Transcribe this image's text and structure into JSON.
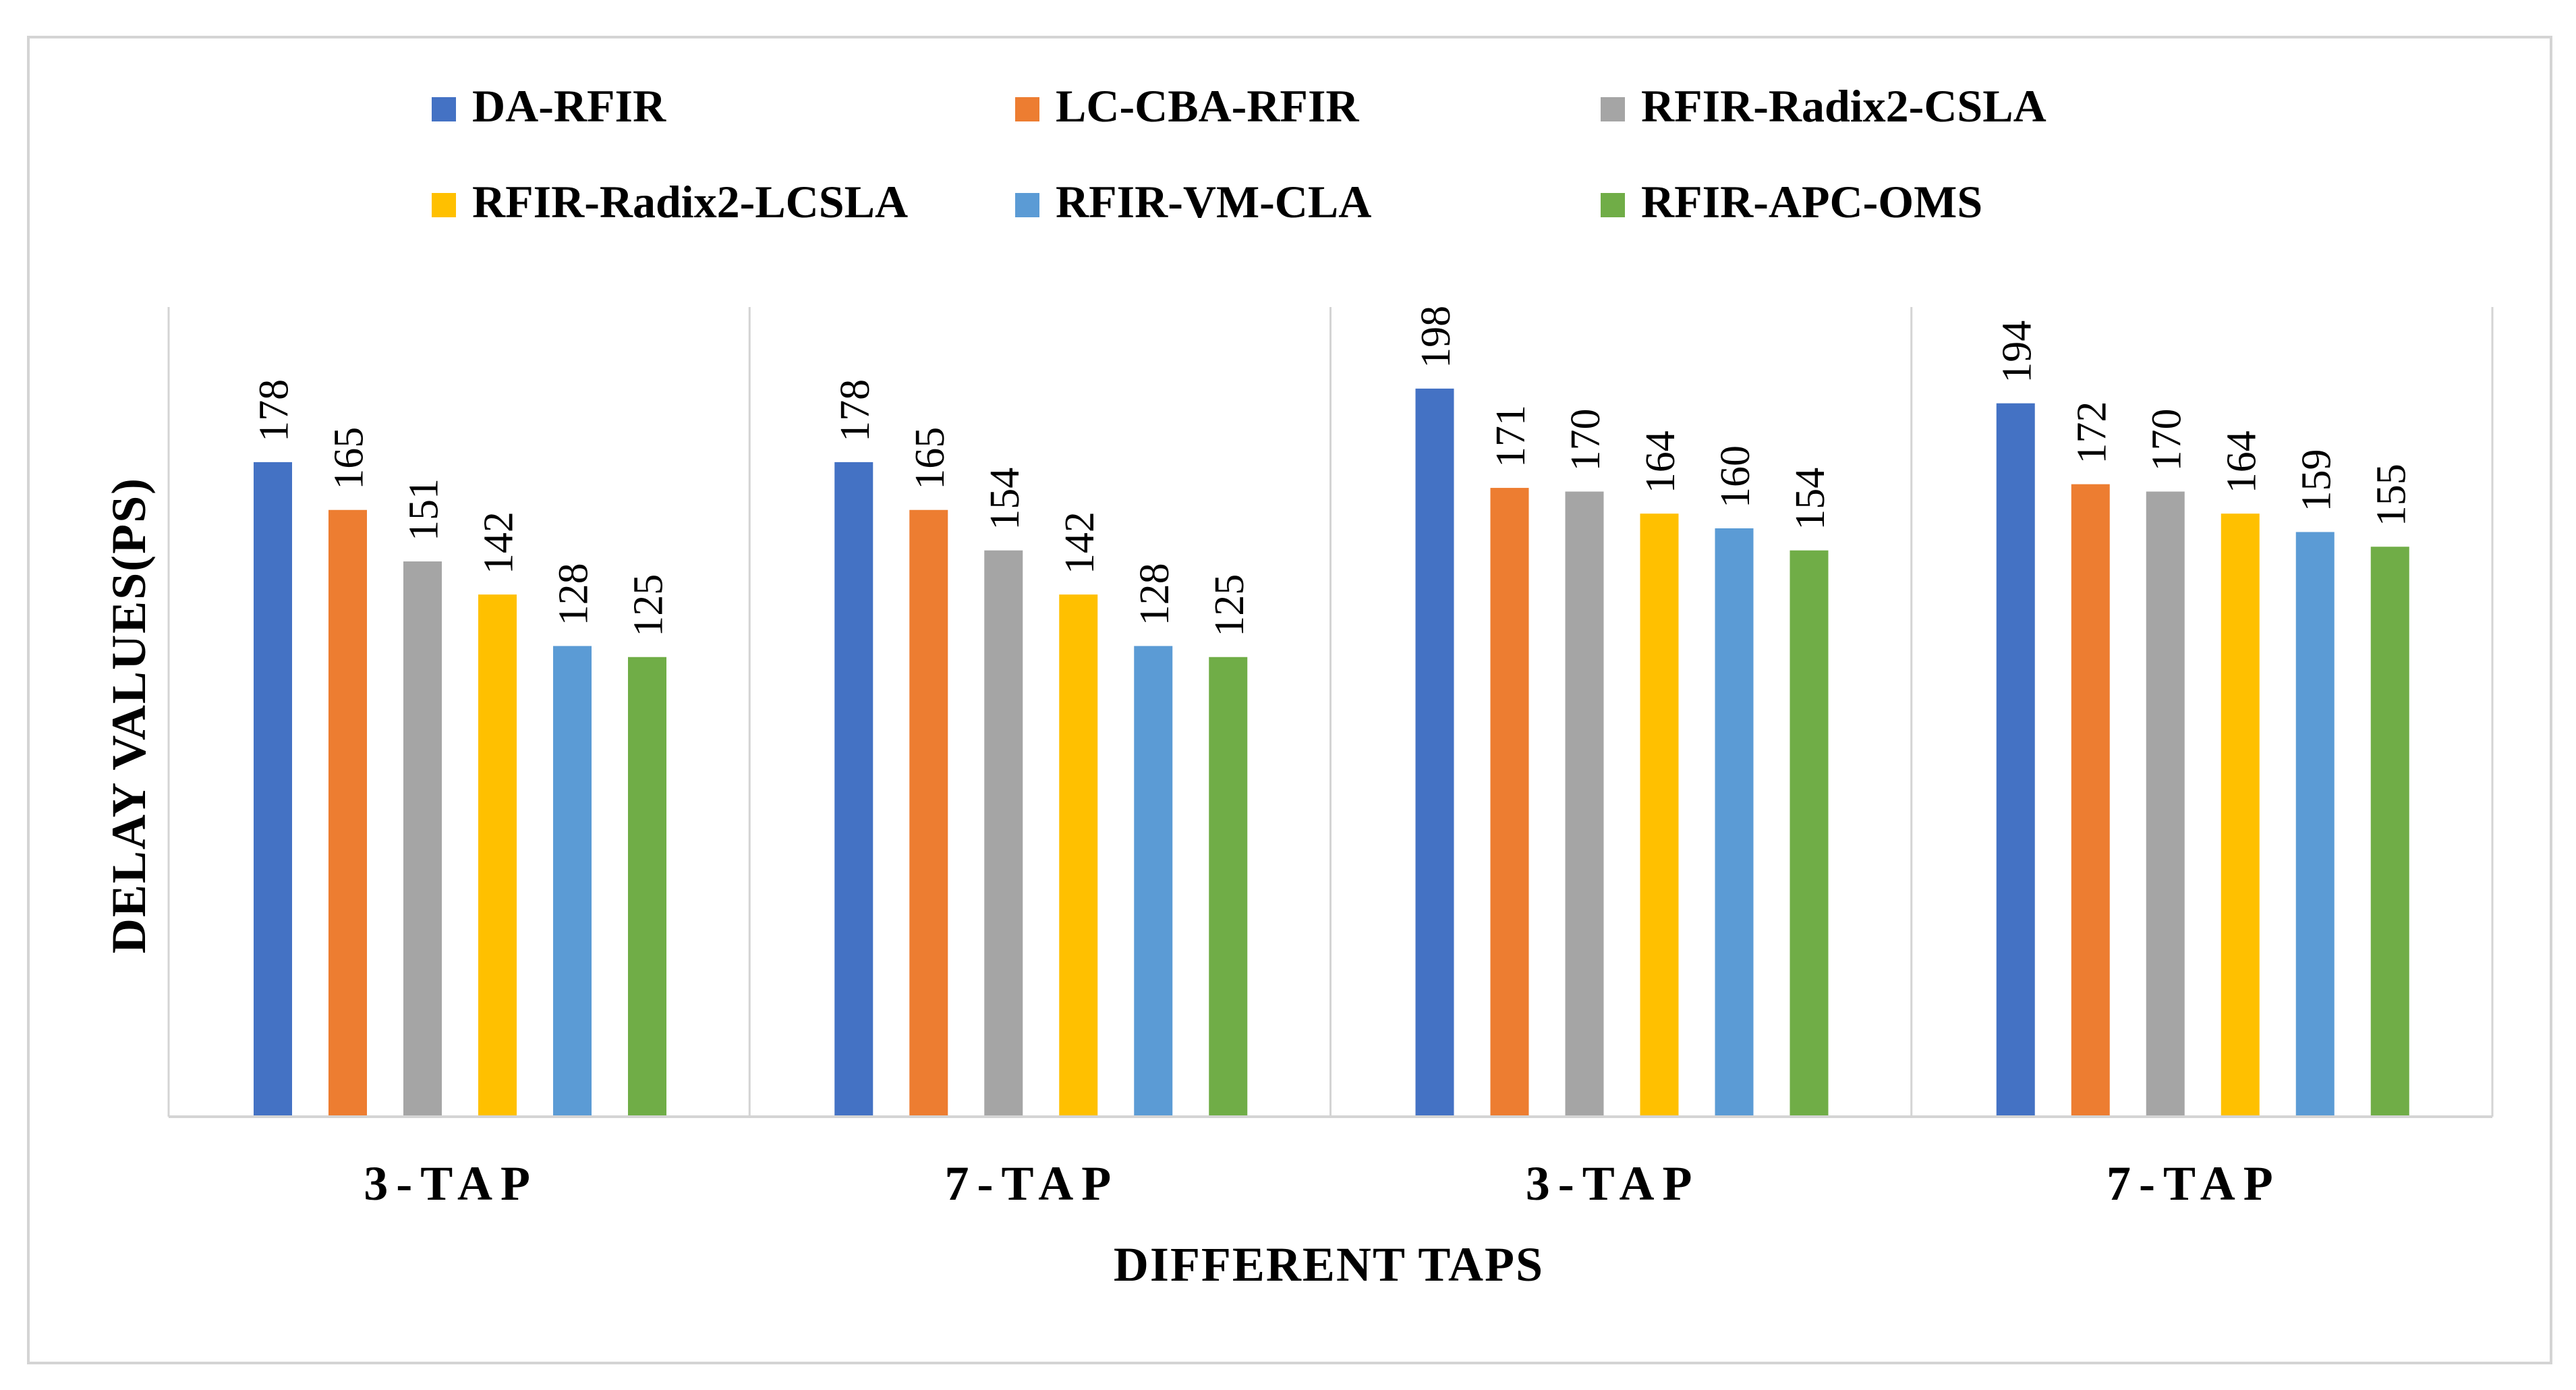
{
  "chart_data": {
    "type": "bar",
    "title": "",
    "xlabel": "DIFFERENT TAPS",
    "ylabel": "DELAY VALUES(PS)",
    "categories": [
      "3-TAP",
      "7-TAP",
      "3-TAP",
      "7-TAP"
    ],
    "ylim": [
      0,
      220
    ],
    "grid": false,
    "legend_position": "top",
    "data_labels": true,
    "series": [
      {
        "name": "DA-RFIR",
        "color": "#4472C4",
        "values": [
          178,
          178,
          198,
          194
        ]
      },
      {
        "name": "LC-CBA-RFIR",
        "color": "#ED7D31",
        "values": [
          165,
          165,
          171,
          172
        ]
      },
      {
        "name": "RFIR-Radix2-CSLA",
        "color": "#A5A5A5",
        "values": [
          151,
          154,
          170,
          170
        ]
      },
      {
        "name": "RFIR-Radix2-LCSLA",
        "color": "#FFC000",
        "values": [
          142,
          142,
          164,
          164
        ]
      },
      {
        "name": "RFIR-VM-CLA",
        "color": "#5B9BD5",
        "values": [
          128,
          128,
          160,
          159
        ]
      },
      {
        "name": "RFIR-APC-OMS",
        "color": "#70AD47",
        "values": [
          125,
          125,
          154,
          155
        ]
      }
    ]
  }
}
